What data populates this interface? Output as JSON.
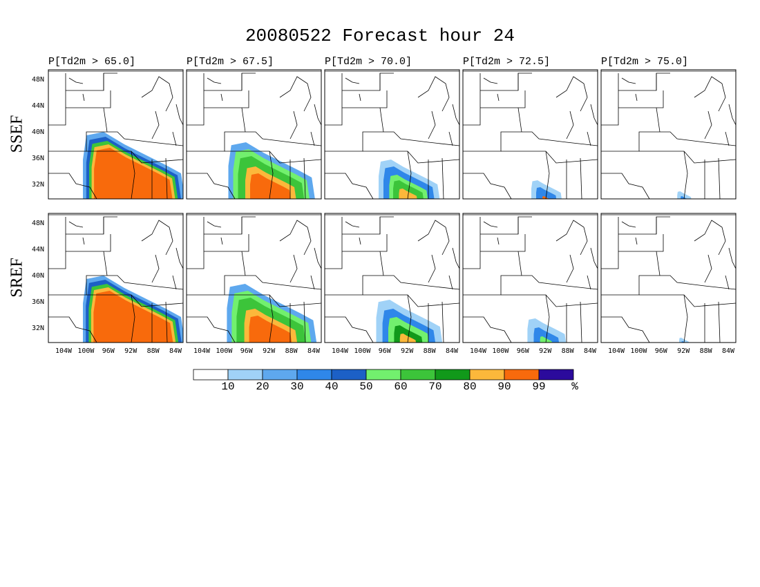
{
  "title": "20080522 Forecast hour 24",
  "columns": [
    "P[Td2m > 65.0]",
    "P[Td2m > 67.5]",
    "P[Td2m > 70.0]",
    "P[Td2m > 72.5]",
    "P[Td2m > 75.0]"
  ],
  "rows": [
    "SSEF",
    "SREF"
  ],
  "lat_labels": [
    "48N",
    "44N",
    "40N",
    "36N",
    "32N"
  ],
  "lon_labels": [
    "104W",
    "100W",
    "96W",
    "92W",
    "88W",
    "84W"
  ],
  "colorbar": {
    "colors": [
      "#ffffff",
      "#a0d2f7",
      "#5ea8ee",
      "#2f87e9",
      "#1c60c6",
      "#72f06e",
      "#3cc43a",
      "#11991a",
      "#fcb83b",
      "#f86a0c",
      "#2b0a9c"
    ],
    "labels": [
      "10",
      "20",
      "30",
      "40",
      "50",
      "60",
      "70",
      "80",
      "90",
      "99",
      "%"
    ]
  }
}
